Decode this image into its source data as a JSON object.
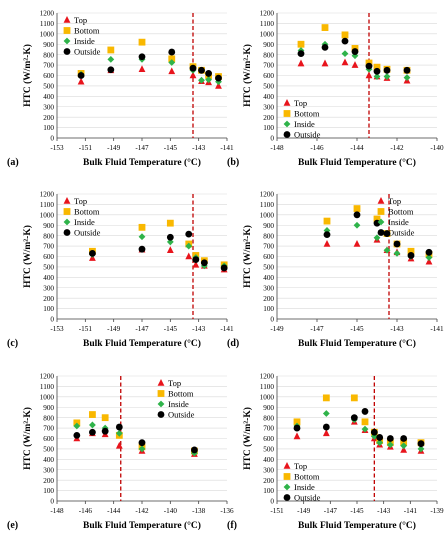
{
  "colors": {
    "top": "#e8141c",
    "bottom": "#f9b800",
    "inside": "#2fb34a",
    "outside": "#000000",
    "threshold_line": "#c00000",
    "axes": "#444444",
    "grid": "#d9d9d9"
  },
  "legend": [
    "Top",
    "Bottom",
    "Inside",
    "Outside"
  ],
  "chart_data": [
    {
      "type": "scatter",
      "panel_label": "(a)",
      "xlabel": "Bulk Fluid Temperature (°C)",
      "ylabel": "HTC (W/m²-K)",
      "xlim": [
        -153,
        -141
      ],
      "ylim": [
        0,
        1200
      ],
      "x_ticks": [
        -153,
        -151,
        -149,
        -147,
        -145,
        -143,
        -141
      ],
      "y_ticks": [
        0,
        100,
        200,
        300,
        400,
        500,
        600,
        700,
        800,
        900,
        1000,
        1100,
        1200
      ],
      "grid": true,
      "vline_x": -143.4,
      "legend_position": "top-left",
      "series": [
        {
          "name": "Top",
          "marker": "triangle",
          "points": [
            [
              -151.3,
              540
            ],
            [
              -149.2,
              650
            ],
            [
              -147.0,
              660
            ],
            [
              -144.9,
              640
            ],
            [
              -143.4,
              600
            ],
            [
              -142.8,
              545
            ],
            [
              -142.3,
              535
            ],
            [
              -141.6,
              500
            ]
          ]
        },
        {
          "name": "Bottom",
          "marker": "square",
          "points": [
            [
              -151.3,
              620
            ],
            [
              -149.2,
              845
            ],
            [
              -147.0,
              920
            ],
            [
              -144.9,
              760
            ],
            [
              -143.4,
              685
            ],
            [
              -142.8,
              650
            ],
            [
              -142.3,
              600
            ],
            [
              -141.6,
              590
            ]
          ]
        },
        {
          "name": "Inside",
          "marker": "diamond",
          "points": [
            [
              -151.3,
              610
            ],
            [
              -149.2,
              755
            ],
            [
              -147.0,
              755
            ],
            [
              -144.9,
              725
            ],
            [
              -143.4,
              650
            ],
            [
              -142.8,
              555
            ],
            [
              -142.3,
              560
            ],
            [
              -141.6,
              540
            ]
          ]
        },
        {
          "name": "Outside",
          "marker": "circle",
          "points": [
            [
              -151.3,
              600
            ],
            [
              -149.2,
              655
            ],
            [
              -147.0,
              780
            ],
            [
              -144.9,
              825
            ],
            [
              -143.4,
              670
            ],
            [
              -142.8,
              650
            ],
            [
              -142.3,
              620
            ],
            [
              -141.6,
              575
            ]
          ]
        }
      ]
    },
    {
      "type": "scatter",
      "panel_label": "(b)",
      "xlabel": "Bulk Fluid Temperature (°C)",
      "ylabel": "HTC (W/m²-K)",
      "xlim": [
        -148,
        -140
      ],
      "ylim": [
        0,
        1200
      ],
      "x_ticks": [
        -148,
        -146,
        -144,
        -142,
        -140
      ],
      "y_ticks": [
        0,
        100,
        200,
        300,
        400,
        500,
        600,
        700,
        800,
        900,
        1000,
        1100,
        1200
      ],
      "grid": true,
      "vline_x": -143.4,
      "legend_position": "left",
      "series": [
        {
          "name": "Top",
          "marker": "triangle",
          "points": [
            [
              -146.8,
              715
            ],
            [
              -145.6,
              715
            ],
            [
              -144.6,
              725
            ],
            [
              -144.1,
              700
            ],
            [
              -143.4,
              600
            ],
            [
              -143.0,
              590
            ],
            [
              -142.5,
              575
            ],
            [
              -141.5,
              550
            ]
          ]
        },
        {
          "name": "Bottom",
          "marker": "square",
          "points": [
            [
              -146.8,
              900
            ],
            [
              -145.6,
              1060
            ],
            [
              -144.6,
              990
            ],
            [
              -144.1,
              860
            ],
            [
              -143.4,
              720
            ],
            [
              -143.0,
              680
            ],
            [
              -142.5,
              660
            ],
            [
              -141.5,
              650
            ]
          ]
        },
        {
          "name": "Inside",
          "marker": "diamond",
          "points": [
            [
              -146.8,
              840
            ],
            [
              -145.6,
              900
            ],
            [
              -144.6,
              810
            ],
            [
              -144.1,
              790
            ],
            [
              -143.4,
              660
            ],
            [
              -143.0,
              590
            ],
            [
              -142.5,
              590
            ],
            [
              -141.5,
              580
            ]
          ]
        },
        {
          "name": "Outside",
          "marker": "circle",
          "points": [
            [
              -146.8,
              810
            ],
            [
              -145.6,
              870
            ],
            [
              -144.6,
              930
            ],
            [
              -144.1,
              830
            ],
            [
              -143.4,
              690
            ],
            [
              -143.0,
              640
            ],
            [
              -142.5,
              650
            ],
            [
              -141.5,
              650
            ]
          ]
        }
      ]
    },
    {
      "type": "scatter",
      "panel_label": "(c)",
      "xlabel": "Bulk Fluid Temperature (°C)",
      "ylabel": "HTC (W/m²-K)",
      "xlim": [
        -153,
        -141
      ],
      "ylim": [
        0,
        1200
      ],
      "x_ticks": [
        -153,
        -151,
        -149,
        -147,
        -145,
        -143,
        -141
      ],
      "y_ticks": [
        0,
        100,
        200,
        300,
        400,
        500,
        600,
        700,
        800,
        900,
        1000,
        1100,
        1200
      ],
      "grid": true,
      "vline_x": -143.4,
      "legend_position": "top-left",
      "series": [
        {
          "name": "Top",
          "marker": "triangle",
          "points": [
            [
              -150.5,
              585
            ],
            [
              -147.0,
              665
            ],
            [
              -145.0,
              660
            ],
            [
              -143.7,
              600
            ],
            [
              -143.2,
              520
            ],
            [
              -142.6,
              510
            ],
            [
              -141.2,
              475
            ]
          ]
        },
        {
          "name": "Bottom",
          "marker": "square",
          "points": [
            [
              -150.5,
              650
            ],
            [
              -147.0,
              880
            ],
            [
              -145.0,
              920
            ],
            [
              -143.7,
              720
            ],
            [
              -143.2,
              610
            ],
            [
              -142.6,
              560
            ],
            [
              -141.2,
              520
            ]
          ]
        },
        {
          "name": "Inside",
          "marker": "diamond",
          "points": [
            [
              -150.5,
              620
            ],
            [
              -147.0,
              790
            ],
            [
              -145.0,
              740
            ],
            [
              -143.7,
              700
            ],
            [
              -143.2,
              590
            ],
            [
              -142.6,
              510
            ],
            [
              -141.2,
              510
            ]
          ]
        },
        {
          "name": "Outside",
          "marker": "circle",
          "points": [
            [
              -150.5,
              630
            ],
            [
              -147.0,
              670
            ],
            [
              -145.0,
              785
            ],
            [
              -143.7,
              815
            ],
            [
              -143.2,
              570
            ],
            [
              -142.6,
              540
            ],
            [
              -141.2,
              490
            ]
          ]
        }
      ]
    },
    {
      "type": "scatter",
      "panel_label": "(d)",
      "xlabel": "Bulk Fluid Temperature (°C)",
      "ylabel": "HTC (W/m²-K)",
      "xlim": [
        -149,
        -141
      ],
      "ylim": [
        0,
        1200
      ],
      "x_ticks": [
        -149,
        -147,
        -145,
        -143,
        -141
      ],
      "y_ticks": [
        0,
        100,
        200,
        300,
        400,
        500,
        600,
        700,
        800,
        900,
        1000,
        1100,
        1200
      ],
      "grid": true,
      "vline_x": -143.4,
      "legend_position": "top-right",
      "series": [
        {
          "name": "Top",
          "marker": "triangle",
          "points": [
            [
              -146.5,
              720
            ],
            [
              -145.0,
              720
            ],
            [
              -144.0,
              760
            ],
            [
              -143.5,
              660
            ],
            [
              -143.0,
              640
            ],
            [
              -142.3,
              580
            ],
            [
              -141.4,
              550
            ]
          ]
        },
        {
          "name": "Bottom",
          "marker": "square",
          "points": [
            [
              -146.5,
              940
            ],
            [
              -145.0,
              1060
            ],
            [
              -144.0,
              960
            ],
            [
              -143.5,
              820
            ],
            [
              -143.0,
              720
            ],
            [
              -142.3,
              650
            ],
            [
              -141.4,
              620
            ]
          ]
        },
        {
          "name": "Inside",
          "marker": "diamond",
          "points": [
            [
              -146.5,
              850
            ],
            [
              -145.0,
              900
            ],
            [
              -144.0,
              780
            ],
            [
              -143.5,
              660
            ],
            [
              -143.0,
              630
            ],
            [
              -142.3,
              600
            ],
            [
              -141.4,
              590
            ]
          ]
        },
        {
          "name": "Outside",
          "marker": "circle",
          "points": [
            [
              -146.5,
              810
            ],
            [
              -145.0,
              1000
            ],
            [
              -144.0,
              920
            ],
            [
              -143.5,
              820
            ],
            [
              -143.0,
              720
            ],
            [
              -142.3,
              610
            ],
            [
              -141.4,
              640
            ]
          ]
        }
      ]
    },
    {
      "type": "scatter",
      "panel_label": "(e)",
      "xlabel": "Bulk Fluid Temperature (°C)",
      "ylabel": "HTC (W/m²-K)",
      "xlim": [
        -148,
        -136
      ],
      "ylim": [
        0,
        1200
      ],
      "x_ticks": [
        -148,
        -146,
        -144,
        -142,
        -140,
        -138,
        -136
      ],
      "y_ticks": [
        0,
        100,
        200,
        300,
        400,
        500,
        600,
        700,
        800,
        900,
        1000,
        1100,
        1200
      ],
      "grid": true,
      "vline_x": -143.5,
      "legend_position": "top-right",
      "series": [
        {
          "name": "Top",
          "marker": "triangle",
          "points": [
            [
              -146.6,
              600
            ],
            [
              -145.5,
              650
            ],
            [
              -144.6,
              640
            ],
            [
              -143.6,
              530
            ],
            [
              -142.0,
              480
            ],
            [
              -138.3,
              450
            ]
          ]
        },
        {
          "name": "Bottom",
          "marker": "square",
          "points": [
            [
              -146.6,
              750
            ],
            [
              -145.5,
              830
            ],
            [
              -144.6,
              800
            ],
            [
              -143.6,
              630
            ],
            [
              -142.0,
              520
            ],
            [
              -138.3,
              480
            ]
          ]
        },
        {
          "name": "Inside",
          "marker": "diamond",
          "points": [
            [
              -146.6,
              720
            ],
            [
              -145.5,
              730
            ],
            [
              -144.6,
              700
            ],
            [
              -143.6,
              650
            ],
            [
              -142.0,
              500
            ],
            [
              -138.3,
              460
            ]
          ]
        },
        {
          "name": "Outside",
          "marker": "circle",
          "points": [
            [
              -146.6,
              630
            ],
            [
              -145.5,
              660
            ],
            [
              -144.6,
              670
            ],
            [
              -143.6,
              710
            ],
            [
              -142.0,
              560
            ],
            [
              -138.3,
              490
            ]
          ]
        }
      ]
    },
    {
      "type": "scatter",
      "panel_label": "(f)",
      "xlabel": "Bulk Fluid Temperature (°C)",
      "ylabel": "HTC (W/m²-K)",
      "xlim": [
        -151,
        -139
      ],
      "ylim": [
        0,
        1200
      ],
      "x_ticks": [
        -151,
        -149,
        -147,
        -145,
        -143,
        -141,
        -139
      ],
      "y_ticks": [
        0,
        100,
        200,
        300,
        400,
        500,
        600,
        700,
        800,
        900,
        1000,
        1100,
        1200
      ],
      "grid": true,
      "vline_x": -143.7,
      "legend_position": "left",
      "series": [
        {
          "name": "Top",
          "marker": "triangle",
          "points": [
            [
              -149.5,
              620
            ],
            [
              -147.3,
              650
            ],
            [
              -145.2,
              760
            ],
            [
              -144.4,
              680
            ],
            [
              -143.7,
              600
            ],
            [
              -143.3,
              540
            ],
            [
              -142.5,
              520
            ],
            [
              -141.5,
              490
            ],
            [
              -140.2,
              480
            ]
          ]
        },
        {
          "name": "Bottom",
          "marker": "square",
          "points": [
            [
              -149.5,
              760
            ],
            [
              -147.3,
              990
            ],
            [
              -145.2,
              990
            ],
            [
              -144.4,
              760
            ],
            [
              -143.7,
              660
            ],
            [
              -143.3,
              580
            ],
            [
              -142.5,
              560
            ],
            [
              -141.5,
              560
            ],
            [
              -140.2,
              560
            ]
          ]
        },
        {
          "name": "Inside",
          "marker": "diamond",
          "points": [
            [
              -149.5,
              720
            ],
            [
              -147.3,
              840
            ],
            [
              -145.2,
              780
            ],
            [
              -144.4,
              690
            ],
            [
              -143.7,
              620
            ],
            [
              -143.3,
              560
            ],
            [
              -142.5,
              540
            ],
            [
              -141.5,
              530
            ],
            [
              -140.2,
              500
            ]
          ]
        },
        {
          "name": "Outside",
          "marker": "circle",
          "points": [
            [
              -149.5,
              700
            ],
            [
              -147.3,
              710
            ],
            [
              -145.2,
              800
            ],
            [
              -144.4,
              860
            ],
            [
              -143.7,
              660
            ],
            [
              -143.3,
              610
            ],
            [
              -142.5,
              600
            ],
            [
              -141.5,
              600
            ],
            [
              -140.2,
              550
            ]
          ]
        }
      ]
    }
  ]
}
